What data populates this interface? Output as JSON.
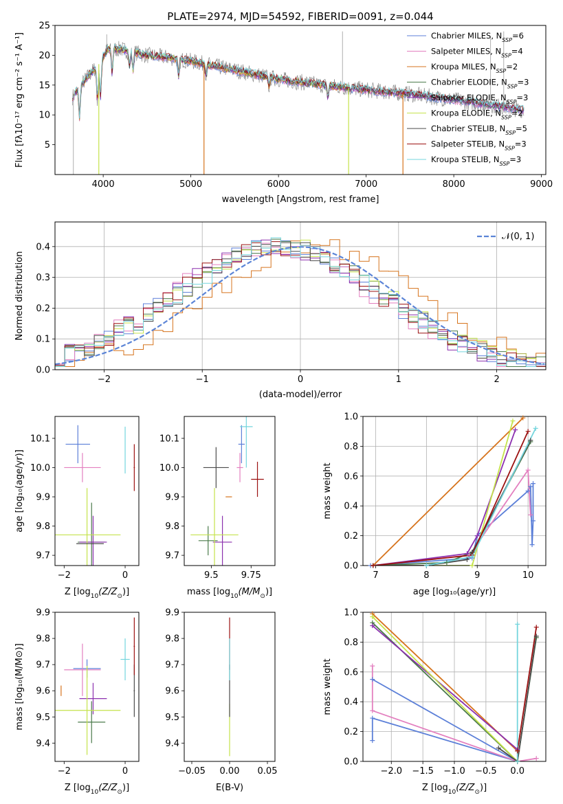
{
  "colors": [
    "#5b7fd8",
    "#e37fbf",
    "#d6731c",
    "#4a7a4a",
    "#8b2fae",
    "#c5e34a",
    "#4a4a4a",
    "#9b1010",
    "#74d5dd"
  ],
  "chart_data": [
    {
      "id": "spectrum",
      "type": "line",
      "title": "PLATE=2974, MJD=54592, FIBERID=0091, z=0.044",
      "xlabel": "wavelength [Angstrom, rest frame]",
      "ylabel": "Flux [fλ10⁻¹⁷ erg cm⁻² s⁻¹ A⁻¹]",
      "xlim": [
        3450,
        9050
      ],
      "ylim": [
        0,
        25
      ],
      "xticks": [
        4000,
        5000,
        6000,
        7000,
        8000,
        9000
      ],
      "yticks": [
        5,
        10,
        15,
        20,
        25
      ],
      "grid": false,
      "legend_position": "top-right",
      "legend": [
        {
          "pre": "Chabrier MILES, N",
          "post": "=6"
        },
        {
          "pre": "Salpeter MILES, N",
          "post": "=4"
        },
        {
          "pre": "Kroupa MILES, N",
          "post": "=2"
        },
        {
          "pre": "Chabrier ELODIE, N",
          "post": "=3"
        },
        {
          "pre": "Salpeter ELODIE, N",
          "post": "=3"
        },
        {
          "pre": "Kroupa ELODIE, N",
          "post": "=2"
        },
        {
          "pre": "Chabrier STELIB, N",
          "post": "=5"
        },
        {
          "pre": "Salpeter STELIB, N",
          "post": "=3"
        },
        {
          "pre": "Kroupa STELIB, N",
          "post": "=3"
        }
      ],
      "legend_sub": "SSP",
      "continuum": [
        [
          3650,
          13
        ],
        [
          3800,
          16
        ],
        [
          3950,
          18.5
        ],
        [
          4050,
          21
        ],
        [
          4200,
          21
        ],
        [
          4500,
          20
        ],
        [
          4800,
          19.5
        ],
        [
          5000,
          19
        ],
        [
          5500,
          17.5
        ],
        [
          6000,
          16
        ],
        [
          6500,
          15
        ],
        [
          7000,
          14.2
        ],
        [
          7500,
          13.5
        ],
        [
          8000,
          12.5
        ],
        [
          8500,
          11.5
        ],
        [
          8800,
          10.8
        ]
      ],
      "absorption": [
        [
          3730,
          5
        ],
        [
          3934,
          6
        ],
        [
          3969,
          6
        ],
        [
          4102,
          4
        ],
        [
          4300,
          2.5
        ],
        [
          4340,
          3
        ],
        [
          4861,
          3
        ],
        [
          5175,
          2
        ],
        [
          5892,
          1.5
        ],
        [
          6563,
          2
        ]
      ],
      "model_cutoffs": [
        {
          "x": 3950,
          "series": 5
        },
        {
          "x": 5150,
          "series": 2
        },
        {
          "x": 6800,
          "series": 5
        },
        {
          "x": 7420,
          "series": 2
        }
      ]
    },
    {
      "id": "residuals",
      "type": "histogram",
      "xlabel": "(data-model)/error",
      "ylabel": "Normed distribution",
      "xlim": [
        -2.5,
        2.5
      ],
      "ylim": [
        0,
        0.48
      ],
      "xticks": [
        -2,
        -1,
        0,
        1,
        2
      ],
      "yticks": [
        0.0,
        0.1,
        0.2,
        0.3,
        0.4
      ],
      "grid": true,
      "bin_width": 0.1,
      "reference_curve": "normal(0,1)",
      "legend_label": "𝒩(0, 1)",
      "legend_position": "top-right"
    },
    {
      "id": "age_vs_Z",
      "type": "errorbar",
      "xlabel_pre": "Z [log",
      "xlabel_sub": "10",
      "xlabel_post": "(Z/Z",
      "xlabel_end": ")]",
      "ylabel": "age  [log₁₀(age/yr)]",
      "xlim": [
        -2.3,
        0.45
      ],
      "ylim": [
        9.665,
        10.175
      ],
      "xticks": [
        -2,
        0
      ],
      "yticks": [
        9.7,
        9.8,
        9.9,
        10.0,
        10.1
      ],
      "points": [
        {
          "s": 0,
          "x": -1.55,
          "y": 10.08,
          "dx": 0.4,
          "dy": 0.065
        },
        {
          "s": 1,
          "x": -1.4,
          "y": 10.0,
          "dx": 0.6,
          "dy": 0.05
        },
        {
          "s": 2,
          "x": 0.3,
          "y": 10.0,
          "dx": 0.01,
          "dy": 0.0
        },
        {
          "s": 3,
          "x": -1.1,
          "y": 9.745,
          "dx": 0.45,
          "dy": 0.135
        },
        {
          "s": 4,
          "x": -1.05,
          "y": 9.745,
          "dx": 0.45,
          "dy": 0.09
        },
        {
          "s": 5,
          "x": -1.25,
          "y": 9.77,
          "dx": 1.1,
          "dy": 0.16
        },
        {
          "s": 6,
          "x": -1.15,
          "y": 9.74,
          "dx": 0.45,
          "dy": 0.0
        },
        {
          "s": 7,
          "x": 0.3,
          "y": 10.0,
          "dx": 0.02,
          "dy": 0.08
        },
        {
          "s": 8,
          "x": 0.0,
          "y": 10.06,
          "dx": 0.01,
          "dy": 0.08
        }
      ]
    },
    {
      "id": "age_vs_mass",
      "type": "errorbar",
      "xlabel_pre": "mass [log",
      "xlabel_sub": "10",
      "xlabel_post": "(M/M",
      "xlabel_end": ")]",
      "ylabel": "",
      "xlim": [
        9.33,
        9.9
      ],
      "ylim": [
        9.665,
        10.175
      ],
      "xticks": [
        9.5,
        9.75
      ],
      "yticks": [
        9.7,
        9.8,
        9.9,
        10.0,
        10.1
      ],
      "points": [
        {
          "s": 0,
          "x": 9.69,
          "y": 10.08,
          "dx": 0.02,
          "dy": 0.065
        },
        {
          "s": 1,
          "x": 9.68,
          "y": 10.0,
          "dx": 0.02,
          "dy": 0.05
        },
        {
          "s": 2,
          "x": 9.61,
          "y": 9.9,
          "dx": 0.02,
          "dy": 0.0
        },
        {
          "s": 3,
          "x": 9.48,
          "y": 9.75,
          "dx": 0.06,
          "dy": 0.05
        },
        {
          "s": 4,
          "x": 9.57,
          "y": 9.745,
          "dx": 0.06,
          "dy": 0.09
        },
        {
          "s": 5,
          "x": 9.52,
          "y": 9.77,
          "dx": 0.15,
          "dy": 0.16
        },
        {
          "s": 6,
          "x": 9.53,
          "y": 10.0,
          "dx": 0.08,
          "dy": 0.07
        },
        {
          "s": 7,
          "x": 9.79,
          "y": 9.96,
          "dx": 0.04,
          "dy": 0.06
        },
        {
          "s": 8,
          "x": 9.72,
          "y": 10.14,
          "dx": 0.04,
          "dy": 0.14
        }
      ]
    },
    {
      "id": "weight_vs_age",
      "type": "line",
      "xlabel": "age  [log₁₀(age/yr)]",
      "ylabel": "mass weight",
      "xlim": [
        6.75,
        10.35
      ],
      "ylim": [
        0.0,
        1.0
      ],
      "xticks": [
        7,
        8,
        9,
        10
      ],
      "yticks": [
        0.0,
        0.2,
        0.4,
        0.6,
        0.8,
        1.0
      ],
      "grid": true,
      "series": [
        {
          "s": 0,
          "x": [
            6.9,
            8.9,
            9.0,
            10.0,
            10.05,
            10.08,
            10.1,
            10.1
          ],
          "y": [
            0.0,
            0.05,
            0.2,
            0.5,
            0.53,
            0.14,
            0.3,
            0.55
          ]
        },
        {
          "s": 1,
          "x": [
            6.95,
            8.85,
            10.0,
            10.05
          ],
          "y": [
            0.0,
            0.07,
            0.64,
            0.34
          ]
        },
        {
          "s": 2,
          "x": [
            6.95,
            9.9
          ],
          "y": [
            0.0,
            0.99
          ]
        },
        {
          "s": 3,
          "x": [
            6.95,
            8.4,
            8.9,
            10.05
          ],
          "y": [
            0.0,
            0.02,
            0.09,
            0.83
          ]
        },
        {
          "s": 4,
          "x": [
            6.95,
            8.8,
            9.0,
            9.75
          ],
          "y": [
            0.0,
            0.08,
            0.2,
            0.91
          ]
        },
        {
          "s": 5,
          "x": [
            6.95,
            8.9,
            9.7
          ],
          "y": [
            0.0,
            0.0,
            0.97
          ]
        },
        {
          "s": 6,
          "x": [
            6.95,
            8.0,
            8.8,
            8.9,
            10.05
          ],
          "y": [
            0.0,
            0.0,
            0.04,
            0.09,
            0.84
          ]
        },
        {
          "s": 7,
          "x": [
            6.95,
            8.9,
            10.0
          ],
          "y": [
            0.0,
            0.07,
            0.9
          ]
        },
        {
          "s": 8,
          "x": [
            8.0,
            8.9,
            10.15
          ],
          "y": [
            0.0,
            0.06,
            0.92
          ]
        }
      ]
    },
    {
      "id": "mass_vs_Z",
      "type": "errorbar",
      "xlabel_pre": "Z [log",
      "xlabel_sub": "10",
      "xlabel_post": "(Z/Z",
      "xlabel_end": ")]",
      "ylabel": "mass [log₁₀(M/M⊙)]",
      "xlim": [
        -2.3,
        0.45
      ],
      "ylim": [
        9.33,
        9.9
      ],
      "xticks": [
        -2,
        0
      ],
      "yticks": [
        9.4,
        9.5,
        9.6,
        9.7,
        9.8,
        9.9
      ],
      "points": [
        {
          "s": 0,
          "x": -1.25,
          "y": 9.685,
          "dx": 0.45,
          "dy": 0.035
        },
        {
          "s": 1,
          "x": -1.4,
          "y": 9.68,
          "dx": 0.6,
          "dy": 0.1
        },
        {
          "s": 2,
          "x": -2.1,
          "y": 9.6,
          "dx": 0.0,
          "dy": 0.02
        },
        {
          "s": 3,
          "x": -1.1,
          "y": 9.48,
          "dx": 0.45,
          "dy": 0.08
        },
        {
          "s": 4,
          "x": -1.05,
          "y": 9.57,
          "dx": 0.45,
          "dy": 0.06
        },
        {
          "s": 5,
          "x": -1.25,
          "y": 9.525,
          "dx": 1.1,
          "dy": 0.17
        },
        {
          "s": 6,
          "x": 0.3,
          "y": 9.6,
          "dx": 0.02,
          "dy": 0.1
        },
        {
          "s": 7,
          "x": 0.3,
          "y": 9.77,
          "dx": 0.02,
          "dy": 0.11
        },
        {
          "s": 8,
          "x": 0.0,
          "y": 9.72,
          "dx": 0.15,
          "dy": 0.08
        }
      ]
    },
    {
      "id": "mass_vs_ebv",
      "type": "errorbar",
      "xlabel": "E(B-V)",
      "ylabel": "",
      "xlim": [
        -0.06,
        0.06
      ],
      "ylim": [
        9.33,
        9.9
      ],
      "xticks": [
        -0.05,
        0.0,
        0.05
      ],
      "xtick_labels": [
        "−0.05",
        "0.00",
        "0.05"
      ],
      "yticks": [
        9.4,
        9.5,
        9.6,
        9.7,
        9.8,
        9.9
      ],
      "points": [
        {
          "s": 5,
          "x": 0.0,
          "y": 9.45,
          "dx": 0.0,
          "dy": 0.1
        },
        {
          "s": 6,
          "x": 0.0,
          "y": 9.6,
          "dx": 0.0,
          "dy": 0.1
        },
        {
          "s": 7,
          "x": 0.0,
          "y": 9.78,
          "dx": 0.0,
          "dy": 0.1
        },
        {
          "s": 8,
          "x": 0.0,
          "y": 9.72,
          "dx": 0.0,
          "dy": 0.08
        }
      ]
    },
    {
      "id": "weight_vs_Z",
      "type": "line",
      "xlabel_pre": "Z [log",
      "xlabel_sub": "10",
      "xlabel_post": "(Z/Z",
      "xlabel_end": ")]",
      "ylabel": "mass weight",
      "xlim": [
        -2.45,
        0.45
      ],
      "ylim": [
        0.0,
        1.0
      ],
      "xticks": [
        -2.0,
        -1.5,
        -1.0,
        -0.5,
        0.0
      ],
      "xtick_labels": [
        "−2.0",
        "−1.5",
        "−1.0",
        "−0.5",
        "0.0"
      ],
      "yticks": [
        0.0,
        0.2,
        0.4,
        0.6,
        0.8,
        1.0
      ],
      "grid": true,
      "series": [
        {
          "s": 0,
          "x": [
            -2.3,
            -2.3,
            0.0,
            -2.3
          ],
          "y": [
            0.14,
            0.29,
            0.0,
            0.55
          ]
        },
        {
          "s": 1,
          "x": [
            -2.3,
            -2.3,
            0.0,
            0.3
          ],
          "y": [
            0.64,
            0.34,
            0.0,
            0.02
          ]
        },
        {
          "s": 2,
          "x": [
            -2.3,
            0.0
          ],
          "y": [
            0.99,
            0.07
          ]
        },
        {
          "s": 3,
          "x": [
            -2.3,
            0.0,
            0.3
          ],
          "y": [
            0.93,
            0.0,
            0.83
          ]
        },
        {
          "s": 4,
          "x": [
            -2.3,
            0.0
          ],
          "y": [
            0.91,
            0.08
          ]
        },
        {
          "s": 5,
          "x": [
            -2.3,
            0.0
          ],
          "y": [
            0.97,
            0.0
          ]
        },
        {
          "s": 6,
          "x": [
            -0.3,
            0.0,
            0.3
          ],
          "y": [
            0.09,
            0.0,
            0.84
          ]
        },
        {
          "s": 7,
          "x": [
            0.0,
            0.3
          ],
          "y": [
            0.07,
            0.9
          ]
        },
        {
          "s": 8,
          "x": [
            0.0,
            0.0
          ],
          "y": [
            0.0,
            0.92
          ]
        }
      ]
    }
  ]
}
